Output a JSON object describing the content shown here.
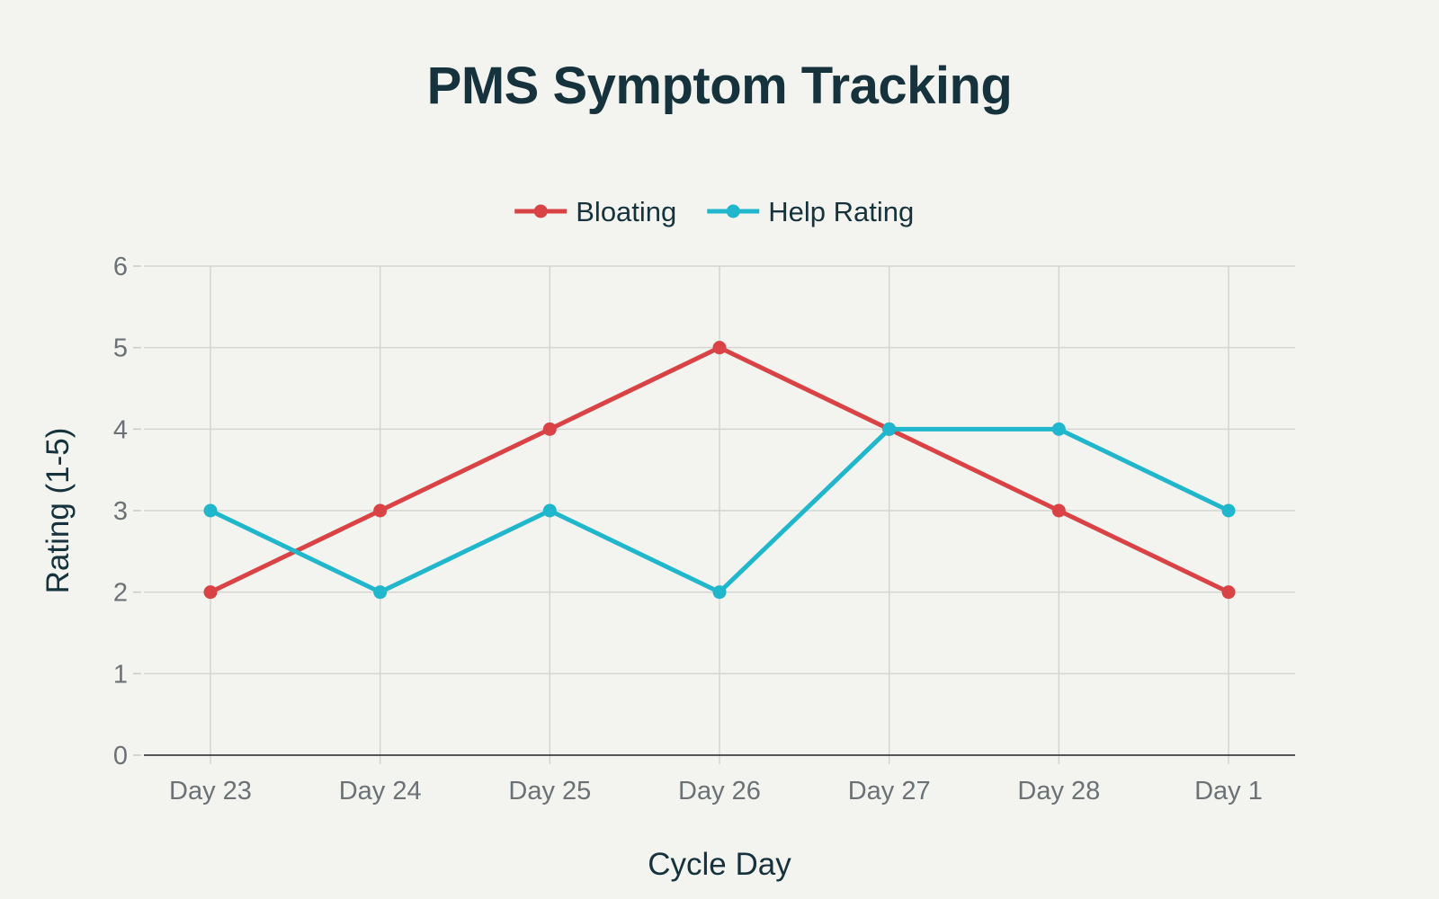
{
  "chart_data": {
    "type": "line",
    "title": "PMS Symptom Tracking",
    "xlabel": "Cycle Day",
    "ylabel": "Rating (1-5)",
    "categories": [
      "Day 23",
      "Day 24",
      "Day 25",
      "Day 26",
      "Day 27",
      "Day 28",
      "Day 1"
    ],
    "ylim": [
      0,
      6
    ],
    "yticks": [
      "0",
      "1",
      "2",
      "3",
      "4",
      "5",
      "6"
    ],
    "grid": true,
    "legend_position": "top-center",
    "series": [
      {
        "name": "Bloating",
        "color": "#d94346",
        "values": [
          2,
          3,
          4,
          5,
          4,
          3,
          2
        ]
      },
      {
        "name": "Help Rating",
        "color": "#20b6cc",
        "values": [
          3,
          2,
          3,
          2,
          4,
          4,
          3
        ]
      }
    ]
  }
}
